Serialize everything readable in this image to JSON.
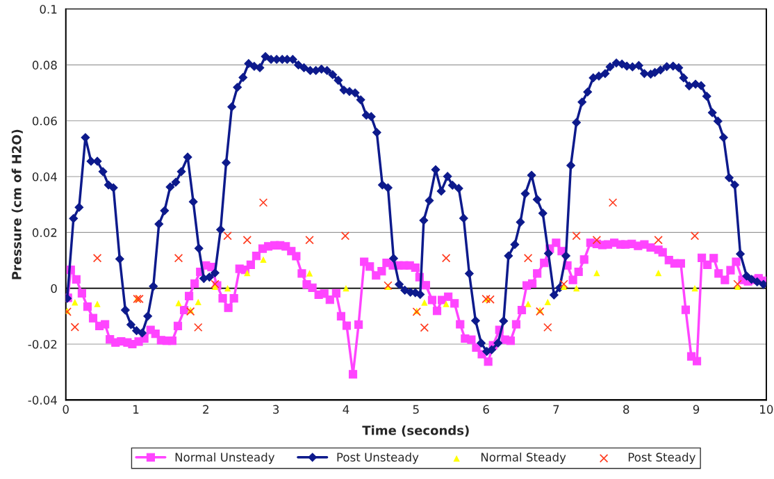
{
  "chart_data": {
    "type": "line",
    "xlabel": "Time (seconds)",
    "ylabel": "Pressure (cm of H2O)",
    "xlim": [
      0,
      10
    ],
    "ylim": [
      -0.04,
      0.1
    ],
    "xticks": [
      0,
      1,
      2,
      3,
      4,
      5,
      6,
      7,
      8,
      9,
      10
    ],
    "yticks": [
      -0.04,
      -0.02,
      0,
      0.02,
      0.04,
      0.06,
      0.08,
      0.1
    ],
    "grid": "y",
    "legend": "bottom",
    "series": [
      {
        "name": "Normal Unsteady",
        "marker": "square",
        "color": "#ff44ff",
        "x": [
          0.03,
          0.07,
          0.15,
          0.23,
          0.31,
          0.39,
          0.48,
          0.56,
          0.63,
          0.71,
          0.79,
          0.88,
          0.95,
          1.04,
          1.12,
          1.21,
          1.28,
          1.36,
          1.44,
          1.52,
          1.6,
          1.69,
          1.76,
          1.84,
          1.92,
          2.0,
          2.08,
          2.16,
          2.24,
          2.32,
          2.4,
          2.48,
          2.56,
          2.64,
          2.72,
          2.81,
          2.89,
          2.98,
          3.06,
          3.14,
          3.22,
          3.29,
          3.37,
          3.44,
          3.52,
          3.61,
          3.69,
          3.77,
          3.86,
          3.93,
          4.01,
          4.1,
          4.18,
          4.26,
          4.34,
          4.43,
          4.51,
          4.58,
          4.67,
          4.75,
          4.83,
          4.91,
          4.99,
          5.05,
          5.14,
          5.23,
          5.3,
          5.37,
          5.46,
          5.55,
          5.63,
          5.7,
          5.79,
          5.86,
          5.94,
          6.03,
          6.1,
          6.19,
          6.27,
          6.35,
          6.43,
          6.51,
          6.58,
          6.66,
          6.73,
          6.83,
          6.91,
          7.0,
          7.08,
          7.16,
          7.24,
          7.32,
          7.4,
          7.49,
          7.58,
          7.66,
          7.74,
          7.83,
          7.92,
          7.99,
          8.08,
          8.17,
          8.26,
          8.35,
          8.46,
          8.52,
          8.61,
          8.69,
          8.78,
          8.85,
          8.93,
          9.01,
          9.08,
          9.16,
          9.25,
          9.32,
          9.41,
          9.49,
          9.57,
          9.66,
          9.74,
          9.82,
          9.89,
          9.97
        ],
        "values": [
          -0.0034,
          0.0066,
          0.0032,
          -0.0018,
          -0.0066,
          -0.0107,
          -0.0135,
          -0.0129,
          -0.0183,
          -0.0194,
          -0.019,
          -0.0194,
          -0.02,
          -0.0191,
          -0.018,
          -0.0149,
          -0.0163,
          -0.0186,
          -0.0188,
          -0.0188,
          -0.0135,
          -0.0078,
          -0.0028,
          0.0017,
          0.0059,
          0.0082,
          0.0076,
          0.001,
          -0.0036,
          -0.007,
          -0.0036,
          0.007,
          0.0066,
          0.0084,
          0.0116,
          0.0142,
          0.015,
          0.0154,
          0.0154,
          0.015,
          0.0133,
          0.0115,
          0.0053,
          0.0014,
          0.0002,
          -0.0023,
          -0.0019,
          -0.0041,
          -0.0018,
          -0.01,
          -0.0134,
          -0.0308,
          -0.013,
          0.0095,
          0.0078,
          0.0046,
          0.0061,
          0.0091,
          0.0082,
          0.0082,
          0.0082,
          0.0082,
          0.0074,
          0.004,
          0.0011,
          -0.0042,
          -0.0081,
          -0.0042,
          -0.003,
          -0.0054,
          -0.0129,
          -0.018,
          -0.0184,
          -0.0212,
          -0.0236,
          -0.0263,
          -0.0204,
          -0.0149,
          -0.0184,
          -0.0188,
          -0.0129,
          -0.0078,
          0.001,
          0.0017,
          0.0053,
          0.0091,
          0.0142,
          0.0163,
          0.0133,
          0.0082,
          0.003,
          0.0059,
          0.0103,
          0.0163,
          0.0159,
          0.0155,
          0.0157,
          0.0163,
          0.0157,
          0.0157,
          0.0159,
          0.0152,
          0.0157,
          0.0146,
          0.0138,
          0.0129,
          0.0101,
          0.0089,
          0.0089,
          -0.0077,
          -0.0244,
          -0.0261,
          0.0109,
          0.0084,
          0.0108,
          0.0053,
          0.003,
          0.0065,
          0.0095,
          0.003,
          0.0025,
          0.003,
          0.0036,
          0.0027
        ]
      },
      {
        "name": "Post Unsteady",
        "marker": "diamond",
        "color": "#0d1a8c",
        "x": [
          0.02,
          0.11,
          0.19,
          0.28,
          0.36,
          0.45,
          0.53,
          0.61,
          0.68,
          0.77,
          0.85,
          0.93,
          1.01,
          1.09,
          1.17,
          1.25,
          1.33,
          1.41,
          1.49,
          1.57,
          1.65,
          1.74,
          1.82,
          1.9,
          1.97,
          2.05,
          2.13,
          2.21,
          2.29,
          2.37,
          2.45,
          2.53,
          2.61,
          2.69,
          2.77,
          2.85,
          2.93,
          3.01,
          3.09,
          3.16,
          3.24,
          3.32,
          3.4,
          3.49,
          3.57,
          3.65,
          3.73,
          3.81,
          3.89,
          3.97,
          4.05,
          4.13,
          4.21,
          4.29,
          4.36,
          4.44,
          4.52,
          4.6,
          4.68,
          4.76,
          4.84,
          4.92,
          4.99,
          5.06,
          5.11,
          5.19,
          5.28,
          5.36,
          5.45,
          5.52,
          5.61,
          5.68,
          5.76,
          5.85,
          5.93,
          6.01,
          6.08,
          6.17,
          6.25,
          6.32,
          6.41,
          6.49,
          6.56,
          6.65,
          6.73,
          6.81,
          6.89,
          6.97,
          7.05,
          7.14,
          7.21,
          7.29,
          7.37,
          7.45,
          7.53,
          7.61,
          7.7,
          7.77,
          7.86,
          7.94,
          8.01,
          8.09,
          8.18,
          8.26,
          8.35,
          8.41,
          8.49,
          8.58,
          8.67,
          8.75,
          8.82,
          8.9,
          8.99,
          9.07,
          9.15,
          9.23,
          9.31,
          9.39,
          9.47,
          9.55,
          9.63,
          9.72,
          9.79,
          9.87,
          9.96
        ],
        "values": [
          -0.0036,
          0.025,
          0.029,
          0.054,
          0.0455,
          0.0455,
          0.0418,
          0.037,
          0.036,
          0.0105,
          -0.0078,
          -0.013,
          -0.0152,
          -0.016,
          -0.01,
          0.0007,
          0.023,
          0.0278,
          0.0363,
          0.038,
          0.0418,
          0.047,
          0.031,
          0.0143,
          0.0035,
          0.004,
          0.0055,
          0.021,
          0.045,
          0.065,
          0.072,
          0.0755,
          0.0805,
          0.0795,
          0.079,
          0.083,
          0.082,
          0.082,
          0.082,
          0.082,
          0.082,
          0.08,
          0.079,
          0.078,
          0.078,
          0.0785,
          0.078,
          0.0765,
          0.0745,
          0.071,
          0.0705,
          0.07,
          0.0675,
          0.062,
          0.0615,
          0.0558,
          0.037,
          0.036,
          0.0107,
          0.0014,
          -0.0007,
          -0.0014,
          -0.0016,
          -0.0022,
          0.0243,
          0.0314,
          0.0425,
          0.0348,
          0.0401,
          0.0369,
          0.0358,
          0.0251,
          0.0053,
          -0.0116,
          -0.0196,
          -0.0226,
          -0.022,
          -0.0196,
          -0.0117,
          0.0116,
          0.0157,
          0.0237,
          0.0339,
          0.0405,
          0.0318,
          0.0269,
          0.0125,
          -0.0024,
          0.0002,
          0.0116,
          0.044,
          0.0594,
          0.0667,
          0.0703,
          0.0754,
          0.076,
          0.0769,
          0.0793,
          0.0807,
          0.0803,
          0.0796,
          0.0793,
          0.0798,
          0.0769,
          0.0767,
          0.0773,
          0.0782,
          0.0794,
          0.0796,
          0.079,
          0.0754,
          0.0725,
          0.0731,
          0.0726,
          0.0688,
          0.0629,
          0.0599,
          0.054,
          0.0396,
          0.037,
          0.0123,
          0.0044,
          0.0032,
          0.0023,
          0.0014
        ]
      },
      {
        "name": "Normal Steady",
        "type": "scatter",
        "marker": "triangle",
        "color": "#ffff00",
        "x": [
          0.02,
          0.13,
          0.45,
          1.02,
          1.61,
          1.78,
          1.89,
          2.13,
          2.31,
          2.59,
          2.82,
          3.48,
          4.0,
          4.6,
          5.01,
          5.12,
          5.43,
          6.02,
          6.6,
          6.77,
          6.88,
          7.11,
          7.29,
          7.58,
          8.46,
          8.98,
          9.59
        ],
        "values": [
          -0.008,
          -0.005,
          -0.0056,
          -0.0036,
          -0.0053,
          -0.0078,
          -0.0049,
          0.0006,
          0,
          0.0055,
          0.0103,
          0.0054,
          0,
          0.0006,
          -0.0081,
          -0.0051,
          -0.0056,
          -0.0038,
          -0.0056,
          -0.0078,
          -0.0049,
          0.0006,
          0,
          0.0055,
          0.0055,
          0,
          0.0006
        ]
      },
      {
        "name": "Post Steady",
        "type": "scatter",
        "marker": "cross",
        "color": "#ff3b1f",
        "x": [
          0.02,
          0.13,
          0.45,
          1.02,
          1.05,
          1.61,
          1.78,
          1.89,
          2.13,
          2.31,
          2.59,
          2.82,
          3.48,
          3.99,
          4.6,
          5.01,
          5.12,
          5.43,
          6.0,
          6.06,
          6.6,
          6.77,
          6.88,
          7.11,
          7.29,
          7.58,
          7.81,
          8.46,
          8.98,
          9.59
        ],
        "values": [
          -0.0084,
          -0.0139,
          0.0108,
          -0.0038,
          -0.0038,
          0.0108,
          -0.0083,
          -0.014,
          0.0015,
          0.0188,
          0.0173,
          0.0307,
          0.0173,
          0.0188,
          0.001,
          -0.0084,
          -0.0141,
          0.0108,
          -0.0038,
          -0.004,
          0.0108,
          -0.0083,
          -0.014,
          0.0015,
          0.0188,
          0.0173,
          0.0307,
          0.0173,
          0.0188,
          0.0015
        ]
      }
    ]
  }
}
